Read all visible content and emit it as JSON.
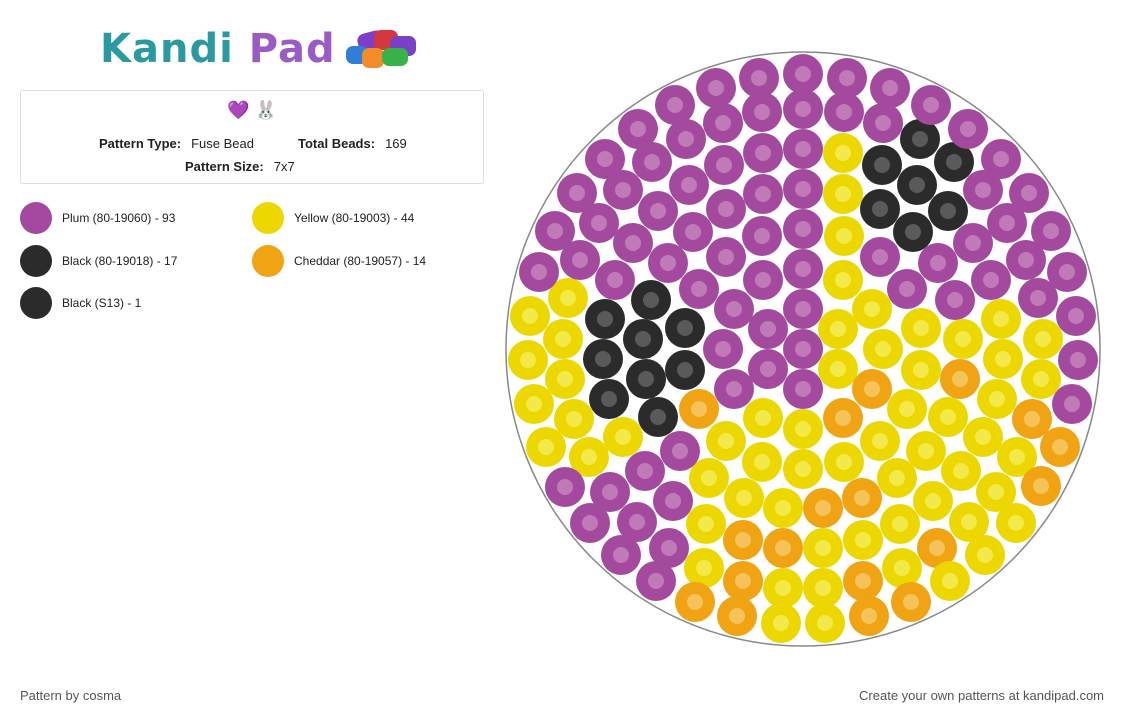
{
  "logo": {
    "part1": "Kandi",
    "part2": "Pad"
  },
  "info": {
    "icons": "💜 🐰",
    "pattern_type_label": "Pattern Type:",
    "pattern_type_value": "Fuse Bead",
    "total_beads_label": "Total Beads:",
    "total_beads_value": "169",
    "pattern_size_label": "Pattern Size:",
    "pattern_size_value": "7x7"
  },
  "legend": [
    {
      "label": "Plum (80-19060) - 93",
      "color": "#a34a9e"
    },
    {
      "label": "Yellow (80-19003) - 44",
      "color": "#ecd800"
    },
    {
      "label": "Black (80-19018) - 17",
      "color": "#2b2b2b"
    },
    {
      "label": "Cheddar (80-19057) - 14",
      "color": "#f0a313"
    },
    {
      "label": "Black (S13) - 1",
      "color": "#2b2b2b"
    }
  ],
  "footer": {
    "left": "Pattern by cosma",
    "right": "Create your own patterns at kandipad.com"
  },
  "colors": {
    "plum": "#a34a9e",
    "plum_center": "#c17ab8",
    "yellow": "#ecd800",
    "yellow_center": "#f4e94a",
    "black": "#2b2b2b",
    "black_center": "#5a5a5a",
    "cheddar": "#f0a313",
    "cheddar_center": "#f6c25a",
    "board_outline": "#888888"
  }
}
